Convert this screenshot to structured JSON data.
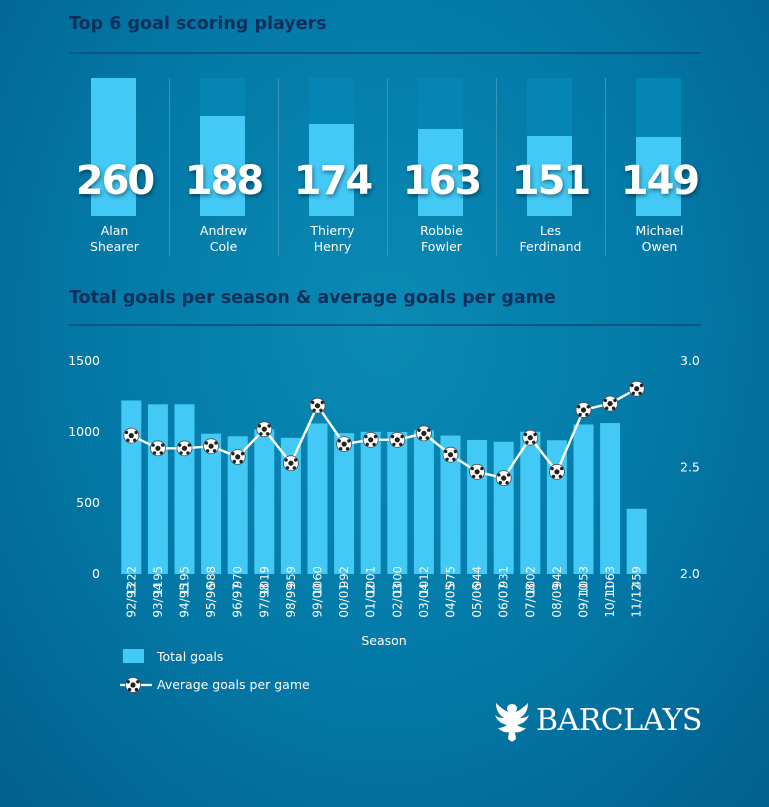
{
  "header": {
    "title": "Top 6 goal scoring players"
  },
  "players": [
    {
      "goals": 260,
      "name_line1": "Alan",
      "name_line2": "Shearer"
    },
    {
      "goals": 188,
      "name_line1": "Andrew",
      "name_line2": "Cole"
    },
    {
      "goals": 174,
      "name_line1": "Thierry",
      "name_line2": "Henry"
    },
    {
      "goals": 163,
      "name_line1": "Robbie",
      "name_line2": "Fowler"
    },
    {
      "goals": 151,
      "name_line1": "Les",
      "name_line2": "Ferdinand"
    },
    {
      "goals": 149,
      "name_line1": "Michael",
      "name_line2": "Owen"
    }
  ],
  "chart_data": {
    "type": "bar",
    "title": "Total goals per season & average goals per game",
    "xlabel": "Season",
    "categories": [
      "92/93",
      "93/94",
      "94/95",
      "95/96",
      "96/97",
      "97/98",
      "98/99",
      "99/00",
      "00/01",
      "01/02",
      "02/03",
      "03/04",
      "04/05",
      "05/06",
      "06/07",
      "07/08",
      "08/09",
      "09/10",
      "10/11",
      "11/12"
    ],
    "series": [
      {
        "name": "Total goals",
        "type": "bar",
        "axis": "left",
        "values": [
          1222,
          1195,
          1195,
          988,
          970,
          1019,
          959,
          1060,
          992,
          1001,
          1000,
          1012,
          975,
          944,
          931,
          1002,
          942,
          1053,
          1063,
          459
        ]
      },
      {
        "name": "Average goals per game",
        "type": "line",
        "axis": "right",
        "values": [
          2.65,
          2.59,
          2.59,
          2.6,
          2.55,
          2.68,
          2.52,
          2.79,
          2.61,
          2.63,
          2.63,
          2.66,
          2.56,
          2.48,
          2.45,
          2.64,
          2.48,
          2.77,
          2.8,
          2.87
        ]
      }
    ],
    "y_left": {
      "ticks": [
        "0",
        "500",
        "1000",
        "1500"
      ],
      "lim": [
        0,
        1500
      ]
    },
    "y_right": {
      "ticks": [
        "2.0",
        "2.5",
        "3.0"
      ],
      "lim": [
        2.0,
        3.0
      ]
    },
    "legend": {
      "placement": "bottom-left",
      "bar_label": "Total goals",
      "line_label": "Average goals per game"
    },
    "colors": {
      "bar": "#43c9f6",
      "line": "#ffffff",
      "background": "#0378a6"
    }
  },
  "brand": {
    "name": "BARCLAYS",
    "logo_icon": "eagle-icon"
  }
}
